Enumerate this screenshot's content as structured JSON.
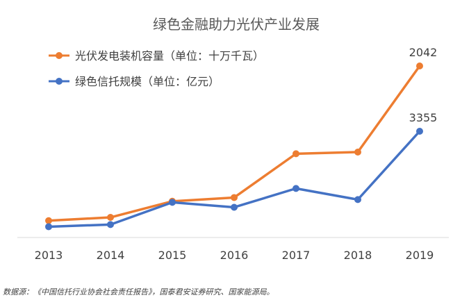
{
  "chart_data": {
    "type": "line",
    "title": "绿色金融助力光伏产业发展",
    "x": [
      "2013",
      "2014",
      "2015",
      "2016",
      "2017",
      "2018",
      "2019"
    ],
    "series": [
      {
        "name": "光伏发电装机容量（单位：十万千瓦）",
        "color": "#ED7D31",
        "values": [
          170,
          210,
          405,
          450,
          980,
          1000,
          2042
        ],
        "data_labels": {
          "6": "2042"
        }
      },
      {
        "name": "绿色信托规模（单位：亿元）",
        "color": "#4472C4",
        "values": [
          260,
          330,
          1050,
          890,
          1500,
          1140,
          3355
        ],
        "data_labels": {
          "6": "3355"
        }
      }
    ],
    "legend_position": "top-left",
    "grid": false
  },
  "source_note": "数据源：《中国信托行业协会社会责任报告》，国泰君安证券研究、国家能源局。"
}
